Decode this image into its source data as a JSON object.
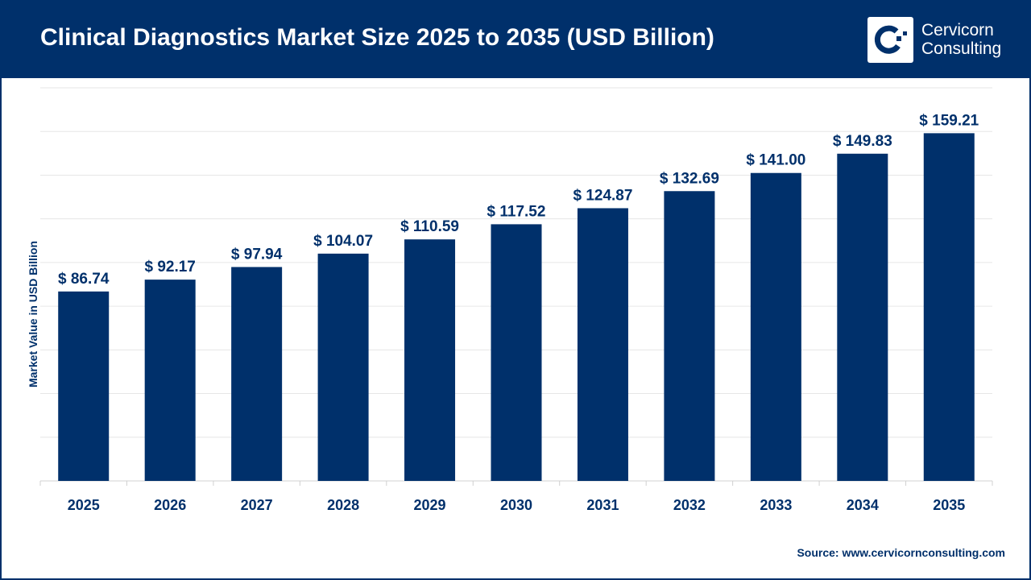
{
  "header": {
    "title": "Clinical Diagnostics Market Size 2025 to 2035 (USD Billion)",
    "logo_line1": "Cervicorn",
    "logo_line2": "Consulting"
  },
  "source": "Source: www.cervicornconsulting.com",
  "colors": {
    "bar": "#00306b",
    "header": "#00306b",
    "grid": "#e6e6e6"
  },
  "chart_data": {
    "type": "bar",
    "title": "Clinical Diagnostics Market Size 2025 to 2035 (USD Billion)",
    "xlabel": "",
    "ylabel": "Market Value in USD Billion",
    "categories": [
      "2025",
      "2026",
      "2027",
      "2028",
      "2029",
      "2030",
      "2031",
      "2032",
      "2033",
      "2034",
      "2035"
    ],
    "values": [
      86.74,
      92.17,
      97.94,
      104.07,
      110.59,
      117.52,
      124.87,
      132.69,
      141.0,
      149.83,
      159.21
    ],
    "data_labels": [
      "$ 86.74",
      "$ 92.17",
      "$ 97.94",
      "$ 104.07",
      "$ 110.59",
      "$ 117.52",
      "$ 124.87",
      "$ 132.69",
      "$ 141.00",
      "$ 149.83",
      "$ 159.21"
    ],
    "ylim": [
      0,
      180
    ],
    "ytick_step": 20,
    "grid": true,
    "y_tick_labels_shown": false
  }
}
